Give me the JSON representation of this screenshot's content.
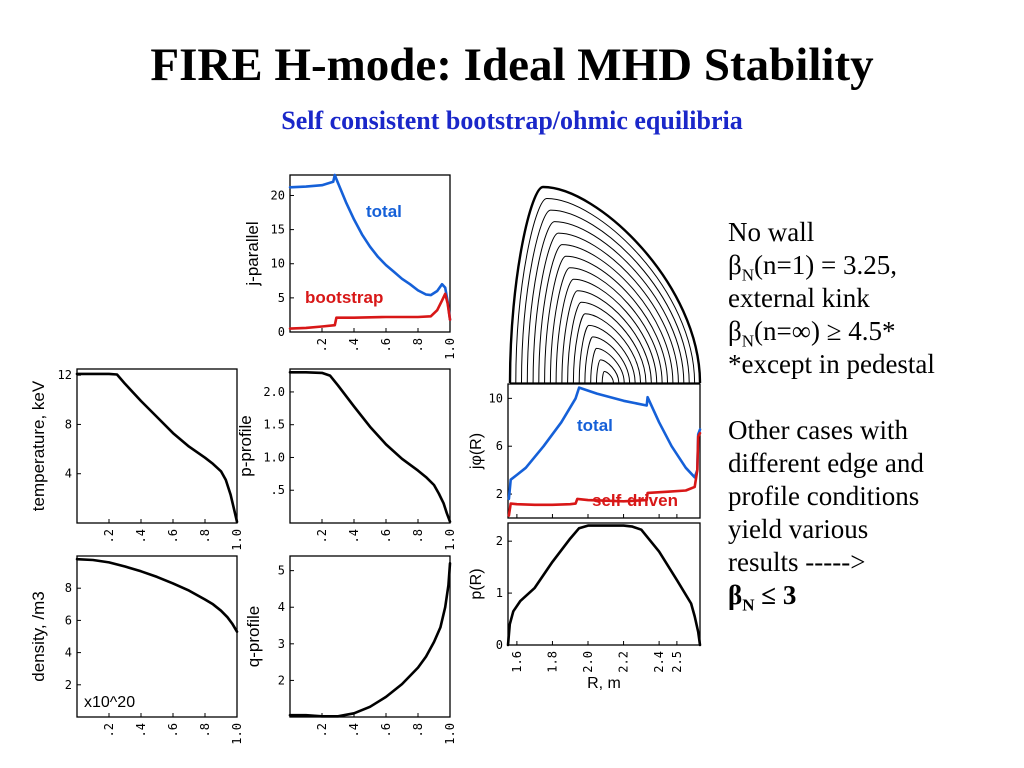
{
  "title": "FIRE H-mode:  Ideal MHD Stability",
  "subtitle": "Self consistent bootstrap/ohmic equilibria",
  "notes": {
    "no_wall": "No wall",
    "beta": "β",
    "sub_n": "N",
    "beta_n1_rest": "(n=1) = 3.25,",
    "external_kink": "external kink",
    "beta_ninf_rest": "(n=∞) ≥ 4.5*",
    "except": "*except in pedestal",
    "other1": "Other cases with",
    "other2": "different edge and",
    "other3": "profile conditions",
    "other4": "yield various",
    "other5": "results  ----->",
    "final_rest": " ≤ 3"
  },
  "chart_data": [
    {
      "id": "j_parallel",
      "type": "line",
      "ylabel": "j-parallel",
      "xlim": [
        0,
        1
      ],
      "ylim": [
        0,
        23
      ],
      "xticks": [
        0.2,
        0.4,
        0.6,
        0.8,
        1.0
      ],
      "xtick_labels": [
        ".2",
        ".4",
        ".6",
        ".8",
        "1.0"
      ],
      "yticks": [
        0,
        5,
        10,
        15,
        20
      ],
      "ytick_labels": [
        "0",
        "5",
        "10",
        "15",
        "20"
      ],
      "series": [
        {
          "name": "total",
          "color": "#1560d8",
          "points": [
            [
              0,
              21.2
            ],
            [
              0.1,
              21.3
            ],
            [
              0.2,
              21.5
            ],
            [
              0.27,
              22
            ],
            [
              0.28,
              23
            ],
            [
              0.29,
              22.4
            ],
            [
              0.35,
              19
            ],
            [
              0.4,
              16.5
            ],
            [
              0.45,
              14.3
            ],
            [
              0.5,
              12.5
            ],
            [
              0.55,
              11
            ],
            [
              0.6,
              9.8
            ],
            [
              0.65,
              8.8
            ],
            [
              0.7,
              7.8
            ],
            [
              0.75,
              7
            ],
            [
              0.8,
              6.1
            ],
            [
              0.85,
              5.5
            ],
            [
              0.88,
              5.4
            ],
            [
              0.92,
              6
            ],
            [
              0.95,
              7
            ],
            [
              0.97,
              6.5
            ],
            [
              0.985,
              4.5
            ],
            [
              1,
              1.8
            ]
          ]
        },
        {
          "name": "bootstrap",
          "color": "#d81717",
          "points": [
            [
              0,
              0.5
            ],
            [
              0.1,
              0.6
            ],
            [
              0.2,
              0.8
            ],
            [
              0.28,
              1
            ],
            [
              0.29,
              2.1
            ],
            [
              0.4,
              2.1
            ],
            [
              0.6,
              2.2
            ],
            [
              0.8,
              2.2
            ],
            [
              0.88,
              2.3
            ],
            [
              0.92,
              3.2
            ],
            [
              0.95,
              4.6
            ],
            [
              0.97,
              5.6
            ],
            [
              0.985,
              4.2
            ],
            [
              1,
              1.8
            ]
          ]
        }
      ]
    },
    {
      "id": "temperature",
      "type": "line",
      "ylabel": "temperature, keV",
      "xlim": [
        0,
        1
      ],
      "ylim": [
        0,
        12.5
      ],
      "xticks": [
        0.2,
        0.4,
        0.6,
        0.8,
        1.0
      ],
      "xtick_labels": [
        ".2",
        ".4",
        ".6",
        ".8",
        "1.0"
      ],
      "yticks": [
        4,
        8,
        12
      ],
      "ytick_labels": [
        "4",
        "8",
        "12"
      ],
      "series": [
        {
          "color": "#000000",
          "points": [
            [
              0,
              12.1
            ],
            [
              0.1,
              12.1
            ],
            [
              0.2,
              12.1
            ],
            [
              0.25,
              12.05
            ],
            [
              0.3,
              11.3
            ],
            [
              0.4,
              9.9
            ],
            [
              0.5,
              8.6
            ],
            [
              0.6,
              7.3
            ],
            [
              0.7,
              6.2
            ],
            [
              0.8,
              5.3
            ],
            [
              0.85,
              4.8
            ],
            [
              0.9,
              4.2
            ],
            [
              0.93,
              3.5
            ],
            [
              0.96,
              2.3
            ],
            [
              0.98,
              1.2
            ],
            [
              1,
              0.1
            ]
          ]
        }
      ]
    },
    {
      "id": "p_profile",
      "type": "line",
      "ylabel": "p-profile",
      "xlim": [
        0,
        1
      ],
      "ylim": [
        0,
        2.35
      ],
      "xticks": [
        0.2,
        0.4,
        0.6,
        0.8,
        1.0
      ],
      "xtick_labels": [
        ".2",
        ".4",
        ".6",
        ".8",
        "1.0"
      ],
      "yticks": [
        0.5,
        1.0,
        1.5,
        2.0
      ],
      "ytick_labels": [
        ".5",
        "1.0",
        "1.5",
        "2.0"
      ],
      "series": [
        {
          "color": "#000000",
          "points": [
            [
              0,
              2.3
            ],
            [
              0.1,
              2.3
            ],
            [
              0.2,
              2.29
            ],
            [
              0.25,
              2.25
            ],
            [
              0.3,
              2.1
            ],
            [
              0.4,
              1.78
            ],
            [
              0.5,
              1.47
            ],
            [
              0.6,
              1.2
            ],
            [
              0.7,
              0.98
            ],
            [
              0.8,
              0.8
            ],
            [
              0.85,
              0.7
            ],
            [
              0.9,
              0.58
            ],
            [
              0.93,
              0.45
            ],
            [
              0.96,
              0.3
            ],
            [
              0.98,
              0.15
            ],
            [
              1,
              0.02
            ]
          ]
        }
      ]
    },
    {
      "id": "density",
      "type": "line",
      "ylabel": "density, /m3",
      "annotation": "x10^20",
      "xlim": [
        0,
        1
      ],
      "ylim": [
        0,
        10
      ],
      "xticks": [
        0.2,
        0.4,
        0.6,
        0.8,
        1.0
      ],
      "xtick_labels": [
        ".2",
        ".4",
        ".6",
        ".8",
        "1.0"
      ],
      "yticks": [
        2,
        4,
        6,
        8
      ],
      "ytick_labels": [
        "2",
        "4",
        "6",
        "8"
      ],
      "series": [
        {
          "color": "#000000",
          "points": [
            [
              0,
              9.8
            ],
            [
              0.1,
              9.75
            ],
            [
              0.2,
              9.6
            ],
            [
              0.3,
              9.35
            ],
            [
              0.4,
              9.05
            ],
            [
              0.5,
              8.7
            ],
            [
              0.6,
              8.3
            ],
            [
              0.7,
              7.85
            ],
            [
              0.8,
              7.3
            ],
            [
              0.85,
              7
            ],
            [
              0.9,
              6.6
            ],
            [
              0.94,
              6.2
            ],
            [
              0.97,
              5.8
            ],
            [
              1,
              5.3
            ]
          ]
        }
      ]
    },
    {
      "id": "q_profile",
      "type": "line",
      "ylabel": "q-profile",
      "xlim": [
        0,
        1
      ],
      "ylim": [
        1,
        5.4
      ],
      "xticks": [
        0.2,
        0.4,
        0.6,
        0.8,
        1.0
      ],
      "xtick_labels": [
        ".2",
        ".4",
        ".6",
        ".8",
        "1.0"
      ],
      "yticks": [
        2,
        3,
        4,
        5
      ],
      "ytick_labels": [
        "2",
        "3",
        "4",
        "5"
      ],
      "series": [
        {
          "color": "#000000",
          "points": [
            [
              0,
              1.05
            ],
            [
              0.1,
              1.05
            ],
            [
              0.2,
              1.02
            ],
            [
              0.3,
              1.02
            ],
            [
              0.4,
              1.1
            ],
            [
              0.5,
              1.28
            ],
            [
              0.6,
              1.55
            ],
            [
              0.7,
              1.9
            ],
            [
              0.8,
              2.35
            ],
            [
              0.85,
              2.65
            ],
            [
              0.9,
              3.05
            ],
            [
              0.94,
              3.45
            ],
            [
              0.97,
              4
            ],
            [
              0.99,
              4.6
            ],
            [
              1,
              5.2
            ]
          ]
        }
      ]
    },
    {
      "id": "j_phi",
      "type": "line",
      "ylabel": "jφ(R)",
      "xlim": [
        1.55,
        2.63
      ],
      "ylim": [
        0,
        11.2
      ],
      "xticks": [
        1.6,
        1.8,
        2.0,
        2.2,
        2.4,
        2.5
      ],
      "yticks": [
        2,
        6,
        10
      ],
      "ytick_labels": [
        "2",
        "6",
        "10"
      ],
      "series": [
        {
          "name": "total",
          "color": "#1560d8",
          "points": [
            [
              1.555,
              1.6
            ],
            [
              1.565,
              3.2
            ],
            [
              1.6,
              3.6
            ],
            [
              1.65,
              4.2
            ],
            [
              1.75,
              6
            ],
            [
              1.85,
              8
            ],
            [
              1.93,
              10
            ],
            [
              1.95,
              10.9
            ],
            [
              2.05,
              10.4
            ],
            [
              2.2,
              9.8
            ],
            [
              2.33,
              9.4
            ],
            [
              2.335,
              10.1
            ],
            [
              2.4,
              8
            ],
            [
              2.47,
              6
            ],
            [
              2.55,
              4.2
            ],
            [
              2.6,
              3.4
            ],
            [
              2.615,
              4
            ],
            [
              2.62,
              7
            ],
            [
              2.63,
              7.4
            ]
          ]
        },
        {
          "name": "self-driven",
          "color": "#d81717",
          "points": [
            [
              1.555,
              0.2
            ],
            [
              1.565,
              1.2
            ],
            [
              1.6,
              1.15
            ],
            [
              1.7,
              1.1
            ],
            [
              1.8,
              1.1
            ],
            [
              1.9,
              1.15
            ],
            [
              1.93,
              1.2
            ],
            [
              1.94,
              1.6
            ],
            [
              2.0,
              1.5
            ],
            [
              2.2,
              1.4
            ],
            [
              2.33,
              1.5
            ],
            [
              2.335,
              2.1
            ],
            [
              2.45,
              2.2
            ],
            [
              2.55,
              2.3
            ],
            [
              2.6,
              2.6
            ],
            [
              2.615,
              4
            ],
            [
              2.62,
              6.8
            ],
            [
              2.63,
              7.1
            ]
          ]
        }
      ]
    },
    {
      "id": "p_R",
      "type": "line",
      "ylabel": "p(R)",
      "xlabel": "R, m",
      "xlim": [
        1.55,
        2.63
      ],
      "ylim": [
        0,
        2.35
      ],
      "xticks": [
        1.6,
        1.8,
        2.0,
        2.2,
        2.4,
        2.5
      ],
      "xtick_labels": [
        "1.6",
        "1.8",
        "2.0",
        "2.2",
        "2.4",
        "2.5"
      ],
      "yticks": [
        0,
        1,
        2
      ],
      "ytick_labels": [
        "0",
        "1",
        "2"
      ],
      "series": [
        {
          "color": "#000000",
          "points": [
            [
              1.55,
              0
            ],
            [
              1.56,
              0.4
            ],
            [
              1.58,
              0.65
            ],
            [
              1.62,
              0.85
            ],
            [
              1.7,
              1.1
            ],
            [
              1.8,
              1.6
            ],
            [
              1.9,
              2.05
            ],
            [
              1.95,
              2.25
            ],
            [
              2.0,
              2.3
            ],
            [
              2.1,
              2.3
            ],
            [
              2.2,
              2.3
            ],
            [
              2.25,
              2.28
            ],
            [
              2.3,
              2.22
            ],
            [
              2.4,
              1.8
            ],
            [
              2.5,
              1.25
            ],
            [
              2.58,
              0.8
            ],
            [
              2.6,
              0.55
            ],
            [
              2.62,
              0.25
            ],
            [
              2.63,
              0
            ]
          ]
        }
      ]
    },
    {
      "id": "flux_surfaces",
      "type": "contour",
      "surfaces": 17
    }
  ]
}
